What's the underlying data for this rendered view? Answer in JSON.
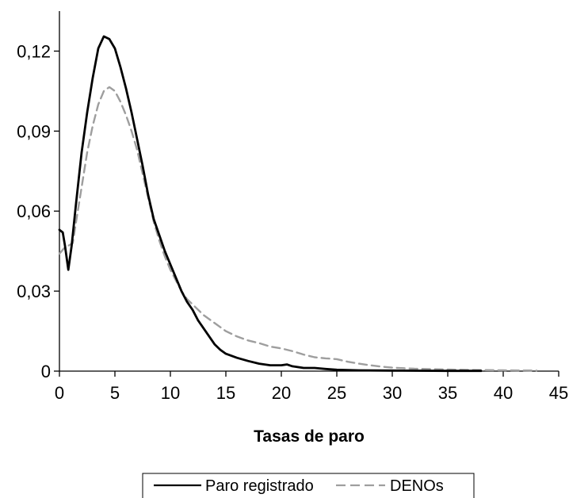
{
  "chart_data": {
    "type": "line",
    "title": "",
    "xlabel": "Tasas de paro",
    "ylabel": "",
    "xlim": [
      0,
      45
    ],
    "ylim": [
      0,
      0.135
    ],
    "x_ticks": [
      0,
      5,
      10,
      15,
      20,
      25,
      30,
      35,
      40,
      45
    ],
    "x_tick_labels": [
      "0",
      "5",
      "10",
      "15",
      "20",
      "25",
      "30",
      "35",
      "40",
      "45"
    ],
    "y_ticks": [
      0,
      0.03,
      0.06,
      0.09,
      0.12
    ],
    "y_tick_labels": [
      "0",
      "0,03",
      "0,06",
      "0,09",
      "0,12"
    ],
    "grid": false,
    "legend_position": "bottom-center",
    "series": [
      {
        "name": "Paro registrado",
        "color": "#000000",
        "style": "solid",
        "points": [
          [
            0,
            0.053
          ],
          [
            0.3,
            0.052
          ],
          [
            0.5,
            0.047
          ],
          [
            0.8,
            0.038
          ],
          [
            1.1,
            0.047
          ],
          [
            1.5,
            0.063
          ],
          [
            2,
            0.082
          ],
          [
            2.5,
            0.097
          ],
          [
            3,
            0.11
          ],
          [
            3.5,
            0.121
          ],
          [
            4,
            0.1255
          ],
          [
            4.5,
            0.1245
          ],
          [
            5,
            0.121
          ],
          [
            5.5,
            0.114
          ],
          [
            6,
            0.106
          ],
          [
            6.5,
            0.097
          ],
          [
            7,
            0.087
          ],
          [
            7.5,
            0.077
          ],
          [
            8,
            0.066
          ],
          [
            8.5,
            0.057
          ],
          [
            9,
            0.051
          ],
          [
            9.5,
            0.045
          ],
          [
            10,
            0.04
          ],
          [
            10.5,
            0.035
          ],
          [
            11,
            0.03
          ],
          [
            11.5,
            0.026
          ],
          [
            12,
            0.023
          ],
          [
            12.5,
            0.019
          ],
          [
            13,
            0.016
          ],
          [
            13.5,
            0.013
          ],
          [
            14,
            0.01
          ],
          [
            14.5,
            0.008
          ],
          [
            15,
            0.0065
          ],
          [
            16,
            0.005
          ],
          [
            17,
            0.0038
          ],
          [
            18,
            0.0028
          ],
          [
            19,
            0.0022
          ],
          [
            20,
            0.0022
          ],
          [
            20.5,
            0.0025
          ],
          [
            21,
            0.0018
          ],
          [
            22,
            0.0012
          ],
          [
            23,
            0.0012
          ],
          [
            24,
            0.0008
          ],
          [
            25,
            0.0005
          ],
          [
            27,
            0.0003
          ],
          [
            30,
            0.0002
          ],
          [
            35,
            0.0001
          ],
          [
            38,
            0.0001
          ]
        ]
      },
      {
        "name": "DENOs",
        "color": "#9e9e9e",
        "style": "dashed",
        "points": [
          [
            0,
            0.044
          ],
          [
            0.4,
            0.046
          ],
          [
            0.8,
            0.047
          ],
          [
            1.2,
            0.048
          ],
          [
            1.5,
            0.056
          ],
          [
            2,
            0.069
          ],
          [
            2.5,
            0.082
          ],
          [
            3,
            0.092
          ],
          [
            3.5,
            0.1
          ],
          [
            4,
            0.105
          ],
          [
            4.5,
            0.1065
          ],
          [
            5,
            0.105
          ],
          [
            5.5,
            0.101
          ],
          [
            6,
            0.096
          ],
          [
            6.5,
            0.09
          ],
          [
            7,
            0.083
          ],
          [
            7.5,
            0.074
          ],
          [
            8,
            0.065
          ],
          [
            8.5,
            0.056
          ],
          [
            9,
            0.049
          ],
          [
            9.5,
            0.043
          ],
          [
            10,
            0.038
          ],
          [
            10.5,
            0.034
          ],
          [
            11,
            0.03
          ],
          [
            11.5,
            0.027
          ],
          [
            12,
            0.025
          ],
          [
            13,
            0.021
          ],
          [
            14,
            0.018
          ],
          [
            15,
            0.015
          ],
          [
            16,
            0.013
          ],
          [
            17,
            0.0115
          ],
          [
            18,
            0.0105
          ],
          [
            19,
            0.0092
          ],
          [
            20,
            0.0085
          ],
          [
            21,
            0.0075
          ],
          [
            22,
            0.0062
          ],
          [
            23,
            0.0052
          ],
          [
            24,
            0.0048
          ],
          [
            25,
            0.0045
          ],
          [
            26,
            0.0035
          ],
          [
            27,
            0.0028
          ],
          [
            28,
            0.0022
          ],
          [
            29,
            0.0017
          ],
          [
            30,
            0.0013
          ],
          [
            32,
            0.0009
          ],
          [
            35,
            0.0006
          ],
          [
            38,
            0.0004
          ],
          [
            40,
            0.0003
          ],
          [
            43,
            0.0002
          ]
        ]
      }
    ]
  }
}
